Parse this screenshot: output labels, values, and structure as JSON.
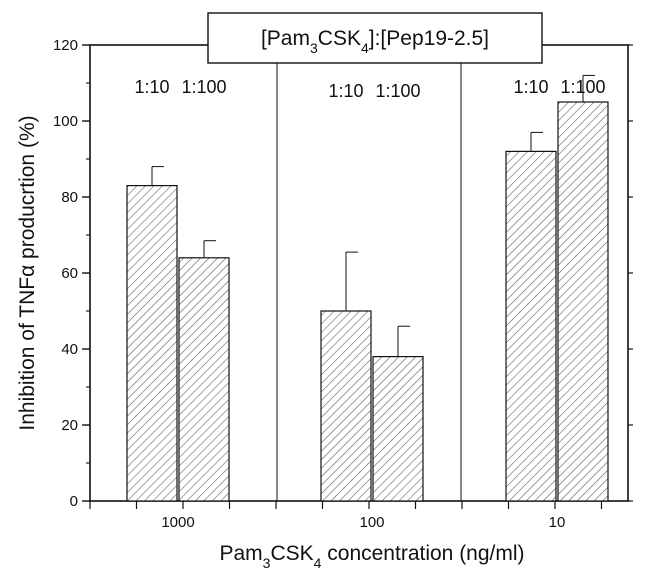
{
  "chart_data": {
    "type": "bar",
    "title": "",
    "legend_box": {
      "parts": [
        {
          "text": "[Pam",
          "sub": false
        },
        {
          "text": "3",
          "sub": true
        },
        {
          "text": "CSK",
          "sub": false
        },
        {
          "text": "4",
          "sub": true
        },
        {
          "text": "]:[Pep19-2.5]",
          "sub": false
        }
      ],
      "placement": "top-center"
    },
    "xlabel": {
      "parts": [
        {
          "text": "Pam",
          "sub": false
        },
        {
          "text": "3",
          "sub": true
        },
        {
          "text": "CSK",
          "sub": false
        },
        {
          "text": "4",
          "sub": true
        },
        {
          "text": " concentration (ng/ml)",
          "sub": false
        }
      ]
    },
    "ylabel": "Inhibition of TNFα producrtion (%)",
    "ylim": [
      0,
      120
    ],
    "yticks": [
      "0",
      "20",
      "40",
      "60",
      "80",
      "100",
      "120"
    ],
    "grid": false,
    "groups": [
      {
        "label": "1000",
        "bars": [
          {
            "label": "1:10",
            "value": 83,
            "error": 5
          },
          {
            "label": "1:100",
            "value": 64,
            "error": 4.5
          }
        ]
      },
      {
        "label": "100",
        "bars": [
          {
            "label": "1:10",
            "value": 50,
            "error": 15.5
          },
          {
            "label": "1:100",
            "value": 38,
            "error": 8
          }
        ]
      },
      {
        "label": "10",
        "bars": [
          {
            "label": "1:10",
            "value": 92,
            "error": 5
          },
          {
            "label": "1:100",
            "value": 105,
            "error": 7
          }
        ]
      }
    ],
    "colors": {
      "bar_fill": "#ffffff",
      "hatch": "#555555",
      "axis": "#111111"
    }
  }
}
